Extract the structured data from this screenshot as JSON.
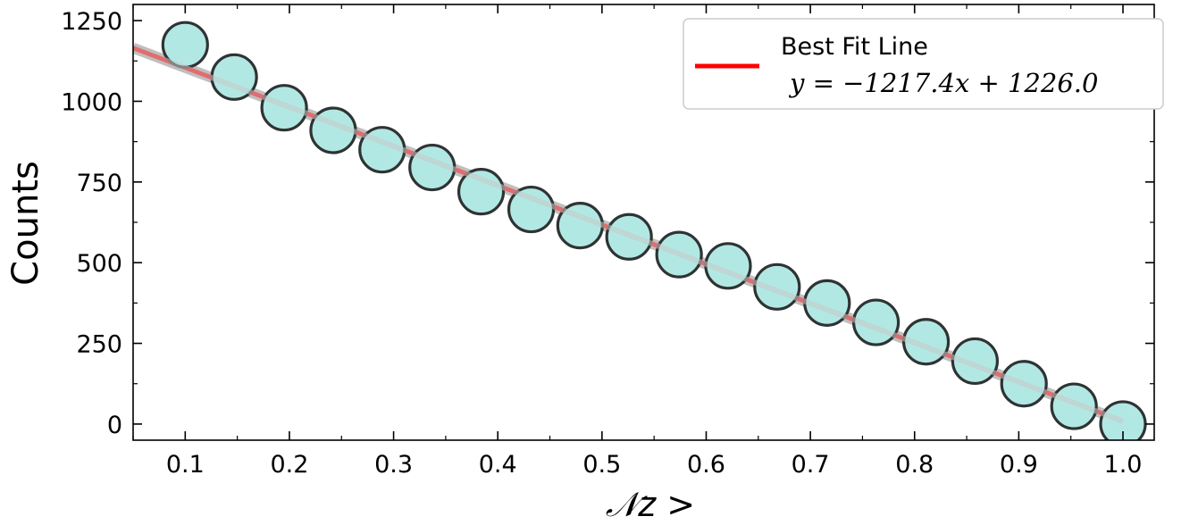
{
  "chart_data": {
    "type": "scatter",
    "xlabel": "𝒩z >",
    "ylabel": "Counts",
    "xlim": [
      0.05,
      1.03
    ],
    "ylim": [
      -50,
      1300
    ],
    "xticks": [
      "0.1",
      "0.2",
      "0.3",
      "0.4",
      "0.5",
      "0.6",
      "0.7",
      "0.8",
      "0.9",
      "1.0"
    ],
    "yticks": [
      "0",
      "250",
      "500",
      "750",
      "1000",
      "1250"
    ],
    "grid": false,
    "legend_position": "top-right",
    "series": [
      {
        "kind": "points",
        "x": [
          0.1,
          0.147,
          0.195,
          0.242,
          0.289,
          0.337,
          0.384,
          0.432,
          0.479,
          0.526,
          0.574,
          0.621,
          0.668,
          0.716,
          0.763,
          0.811,
          0.858,
          0.905,
          0.953,
          1.0
        ],
        "y": [
          1175,
          1075,
          980,
          910,
          850,
          795,
          720,
          665,
          615,
          580,
          525,
          490,
          425,
          375,
          315,
          255,
          195,
          125,
          55,
          0
        ]
      },
      {
        "kind": "fit_line",
        "name": "Best Fit Line",
        "equation": "y = −1217.4x + 1226.0",
        "slope": -1217.4,
        "intercept": 1226.0,
        "x_range": [
          0.05,
          1.0
        ]
      }
    ],
    "colors": {
      "marker_fill": "#b2e8e3",
      "marker_edge": "#2f3333",
      "fit_line": "#ff0000",
      "band": "#b5b5b5"
    }
  }
}
